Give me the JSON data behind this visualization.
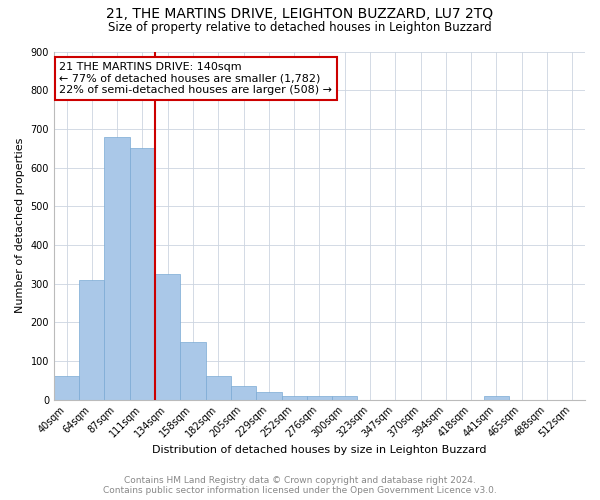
{
  "title": "21, THE MARTINS DRIVE, LEIGHTON BUZZARD, LU7 2TQ",
  "subtitle": "Size of property relative to detached houses in Leighton Buzzard",
  "xlabel": "Distribution of detached houses by size in Leighton Buzzard",
  "ylabel": "Number of detached properties",
  "categories": [
    "40sqm",
    "64sqm",
    "87sqm",
    "111sqm",
    "134sqm",
    "158sqm",
    "182sqm",
    "205sqm",
    "229sqm",
    "252sqm",
    "276sqm",
    "300sqm",
    "323sqm",
    "347sqm",
    "370sqm",
    "394sqm",
    "418sqm",
    "441sqm",
    "465sqm",
    "488sqm",
    "512sqm"
  ],
  "values": [
    60,
    310,
    680,
    650,
    325,
    150,
    60,
    35,
    20,
    10,
    8,
    8,
    0,
    0,
    0,
    0,
    0,
    8,
    0,
    0,
    0
  ],
  "bar_color": "#aac8e8",
  "bar_edge_color": "#7aaad4",
  "vline_x_index": 3.5,
  "vline_color": "#cc0000",
  "annotation_line1": "21 THE MARTINS DRIVE: 140sqm",
  "annotation_line2": "← 77% of detached houses are smaller (1,782)",
  "annotation_line3": "22% of semi-detached houses are larger (508) →",
  "annotation_box_color": "#cc0000",
  "ylim": [
    0,
    900
  ],
  "yticks": [
    0,
    100,
    200,
    300,
    400,
    500,
    600,
    700,
    800,
    900
  ],
  "footer_line1": "Contains HM Land Registry data © Crown copyright and database right 2024.",
  "footer_line2": "Contains public sector information licensed under the Open Government Licence v3.0.",
  "bg_color": "#ffffff",
  "grid_color": "#ccd5e0",
  "title_fontsize": 10,
  "subtitle_fontsize": 8.5,
  "xlabel_fontsize": 8,
  "ylabel_fontsize": 8,
  "tick_fontsize": 7,
  "annotation_fontsize": 8,
  "footer_fontsize": 6.5
}
